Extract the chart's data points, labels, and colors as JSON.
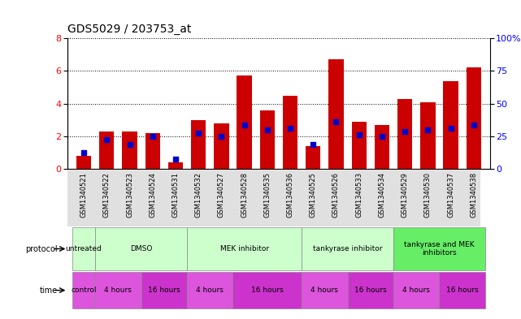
{
  "title": "GDS5029 / 203753_at",
  "samples": [
    "GSM1340521",
    "GSM1340522",
    "GSM1340523",
    "GSM1340524",
    "GSM1340531",
    "GSM1340532",
    "GSM1340527",
    "GSM1340528",
    "GSM1340535",
    "GSM1340536",
    "GSM1340525",
    "GSM1340526",
    "GSM1340533",
    "GSM1340534",
    "GSM1340529",
    "GSM1340530",
    "GSM1340537",
    "GSM1340538"
  ],
  "count_values": [
    0.8,
    2.3,
    2.3,
    2.2,
    0.4,
    3.0,
    2.8,
    5.7,
    3.6,
    4.5,
    1.4,
    6.7,
    2.9,
    2.7,
    4.3,
    4.1,
    5.4,
    6.2
  ],
  "percentile_values": [
    1.0,
    1.8,
    1.5,
    2.0,
    0.6,
    2.2,
    2.0,
    2.7,
    2.4,
    2.5,
    1.5,
    2.9,
    2.1,
    2.0,
    2.3,
    2.4,
    2.5,
    2.7
  ],
  "bar_color": "#cc0000",
  "dot_color": "#0000cc",
  "ylim": [
    0,
    8
  ],
  "yticks": [
    0,
    2,
    4,
    6,
    8
  ],
  "yticks_right": [
    0,
    25,
    50,
    75,
    100
  ],
  "ytick_labels_right": [
    "0",
    "25",
    "50",
    "75",
    "100%"
  ],
  "protocol_groups": [
    {
      "label": "untreated",
      "start": 0,
      "end": 0,
      "color": "#ccffcc"
    },
    {
      "label": "DMSO",
      "start": 1,
      "end": 4,
      "color": "#ccffcc"
    },
    {
      "label": "MEK inhibitor",
      "start": 5,
      "end": 9,
      "color": "#ccffcc"
    },
    {
      "label": "tankyrase inhibitor",
      "start": 10,
      "end": 13,
      "color": "#ccffcc"
    },
    {
      "label": "tankyrase and MEK\ninhibitors",
      "start": 14,
      "end": 17,
      "color": "#66ee66"
    }
  ],
  "time_groups": [
    {
      "label": "control",
      "start": 0,
      "end": 0,
      "color": "#dd55dd"
    },
    {
      "label": "4 hours",
      "start": 1,
      "end": 2,
      "color": "#dd55dd"
    },
    {
      "label": "16 hours",
      "start": 3,
      "end": 4,
      "color": "#cc33cc"
    },
    {
      "label": "4 hours",
      "start": 5,
      "end": 6,
      "color": "#dd55dd"
    },
    {
      "label": "16 hours",
      "start": 7,
      "end": 9,
      "color": "#cc33cc"
    },
    {
      "label": "4 hours",
      "start": 10,
      "end": 11,
      "color": "#dd55dd"
    },
    {
      "label": "16 hours",
      "start": 12,
      "end": 13,
      "color": "#cc33cc"
    },
    {
      "label": "4 hours",
      "start": 14,
      "end": 15,
      "color": "#dd55dd"
    },
    {
      "label": "16 hours",
      "start": 16,
      "end": 17,
      "color": "#cc33cc"
    }
  ],
  "legend_count_color": "#cc0000",
  "legend_dot_color": "#0000cc",
  "bg_color": "#ffffff",
  "title_fontsize": 10
}
